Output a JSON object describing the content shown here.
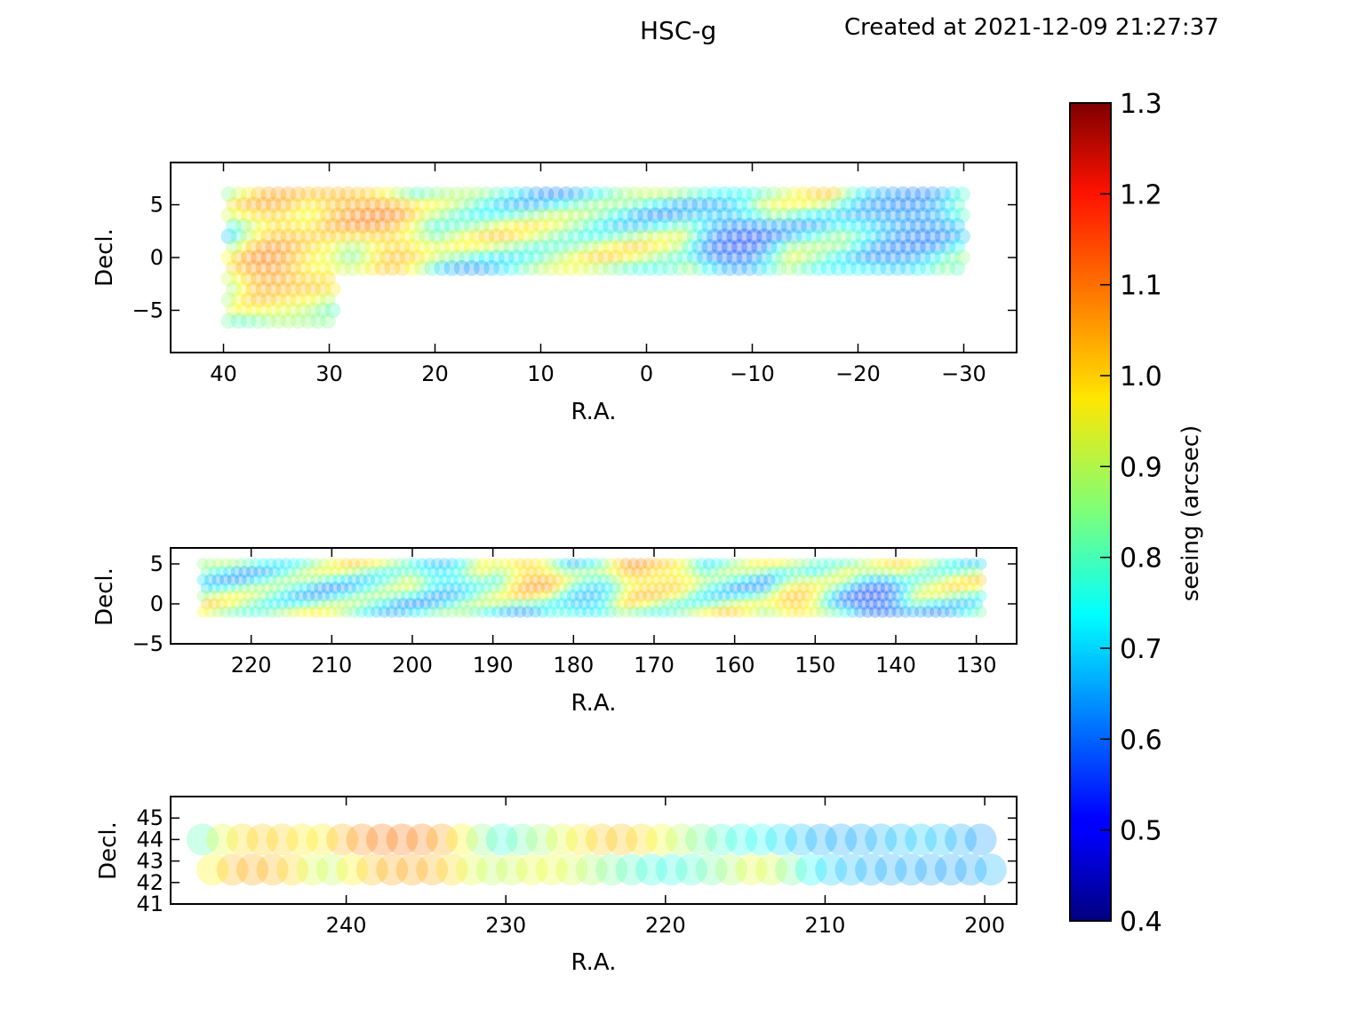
{
  "header": {
    "title": "HSC-g",
    "created": "Created at 2021-12-09 21:27:37"
  },
  "chart_data": [
    {
      "type": "scatter",
      "panel": "top",
      "xlabel": "R.A.",
      "ylabel": "Decl.",
      "xlim": [
        45,
        -35
      ],
      "ylim": [
        -9,
        9
      ],
      "xticks": [
        40,
        30,
        20,
        10,
        0,
        -10,
        -20,
        -30
      ],
      "yticks": [
        -5,
        0,
        5
      ],
      "dec_rows": [
        6.0,
        5.0,
        4.0,
        3.0,
        2.0,
        1.0,
        0.0,
        -1.0
      ],
      "south_rows": [
        -2.0,
        -3.0,
        -4.0,
        -5.0,
        -6.0
      ],
      "ra_range": [
        39.5,
        -30.0
      ],
      "south_ra_range": [
        39.5,
        29.5
      ],
      "marker_radius_deg": 0.75,
      "fields": [
        {
          "ra": 36.0,
          "dec": -1.0,
          "seeing": 1.15
        },
        {
          "ra": 34.5,
          "dec": -0.5,
          "seeing": 1.12
        },
        {
          "ra": 31.0,
          "dec": 0.0,
          "seeing": 1.05
        },
        {
          "ra": 24.0,
          "dec": 0.5,
          "seeing": 1.1
        },
        {
          "ra": 35.0,
          "dec": 4.0,
          "seeing": 1.08
        },
        {
          "ra": 29.0,
          "dec": 5.0,
          "seeing": 1.1
        },
        {
          "ra": 26.0,
          "dec": 4.5,
          "seeing": 1.12
        },
        {
          "ra": -9.0,
          "dec": 0.0,
          "seeing": 0.52
        },
        {
          "ra": -8.0,
          "dec": 1.5,
          "seeing": 0.55
        },
        {
          "ra": -25.0,
          "dec": 4.0,
          "seeing": 0.55
        },
        {
          "ra": -22.0,
          "dec": 5.0,
          "seeing": 0.6
        },
        {
          "ra": -27.0,
          "dec": 4.0,
          "seeing": 0.58
        },
        {
          "ra": -24.0,
          "dec": 0.0,
          "seeing": 0.62
        },
        {
          "ra": 34.0,
          "dec": -5.0,
          "seeing": 0.95
        }
      ]
    },
    {
      "type": "scatter",
      "panel": "middle",
      "xlabel": "R.A.",
      "ylabel": "Decl.",
      "xlim": [
        230,
        125
      ],
      "ylim": [
        -5,
        7
      ],
      "xticks": [
        220,
        210,
        200,
        190,
        180,
        170,
        160,
        150,
        140,
        130
      ],
      "yticks": [
        -5,
        0,
        5
      ],
      "dec_rows": [
        5.0,
        4.0,
        3.0,
        2.0,
        1.0,
        0.0,
        -1.0
      ],
      "ra_range": [
        226.0,
        129.0
      ],
      "marker_radius_deg": 0.75,
      "fields": [
        {
          "ra": 142.0,
          "dec": -0.5,
          "seeing": 0.52
        },
        {
          "ra": 143.0,
          "dec": 0.5,
          "seeing": 0.55
        },
        {
          "ra": 172.0,
          "dec": 4.5,
          "seeing": 1.15
        },
        {
          "ra": 168.0,
          "dec": 4.5,
          "seeing": 1.1
        },
        {
          "ra": 185.0,
          "dec": 4.0,
          "seeing": 1.1
        },
        {
          "ra": 152.0,
          "dec": 0.0,
          "seeing": 1.1
        },
        {
          "ra": 178.0,
          "dec": 0.0,
          "seeing": 0.62
        },
        {
          "ra": 196.0,
          "dec": 4.0,
          "seeing": 0.62
        }
      ]
    },
    {
      "type": "scatter",
      "panel": "bottom",
      "xlabel": "R.A.",
      "ylabel": "Decl.",
      "xlim": [
        251,
        198
      ],
      "ylim": [
        41,
        46
      ],
      "xticks": [
        240,
        230,
        220,
        210,
        200
      ],
      "yticks": [
        41,
        42,
        43,
        44,
        45
      ],
      "dec_rows": [
        44.0,
        42.6
      ],
      "ra_range": [
        249.0,
        199.5
      ],
      "marker_radius_deg": 1.0,
      "fields": [
        {
          "ra": 238.0,
          "dec": 43.6,
          "seeing": 1.1
        },
        {
          "ra": 236.5,
          "dec": 44.0,
          "seeing": 1.15
        },
        {
          "ra": 235.0,
          "dec": 43.6,
          "seeing": 1.12
        },
        {
          "ra": 246.0,
          "dec": 42.6,
          "seeing": 1.1
        },
        {
          "ra": 245.0,
          "dec": 43.9,
          "seeing": 1.05
        },
        {
          "ra": 209.5,
          "dec": 43.8,
          "seeing": 0.6
        },
        {
          "ra": 207.5,
          "dec": 43.9,
          "seeing": 0.62
        },
        {
          "ra": 205.5,
          "dec": 42.9,
          "seeing": 0.62
        },
        {
          "ra": 201.0,
          "dec": 42.6,
          "seeing": 0.62
        }
      ]
    }
  ],
  "colorbar": {
    "label": "seeing (arcsec)",
    "vmin": 0.4,
    "vmax": 1.3,
    "ticks": [
      "1.3",
      "1.2",
      "1.1",
      "1.0",
      "0.9",
      "0.8",
      "0.7",
      "0.6",
      "0.5",
      "0.4"
    ],
    "colormap": "jet"
  }
}
